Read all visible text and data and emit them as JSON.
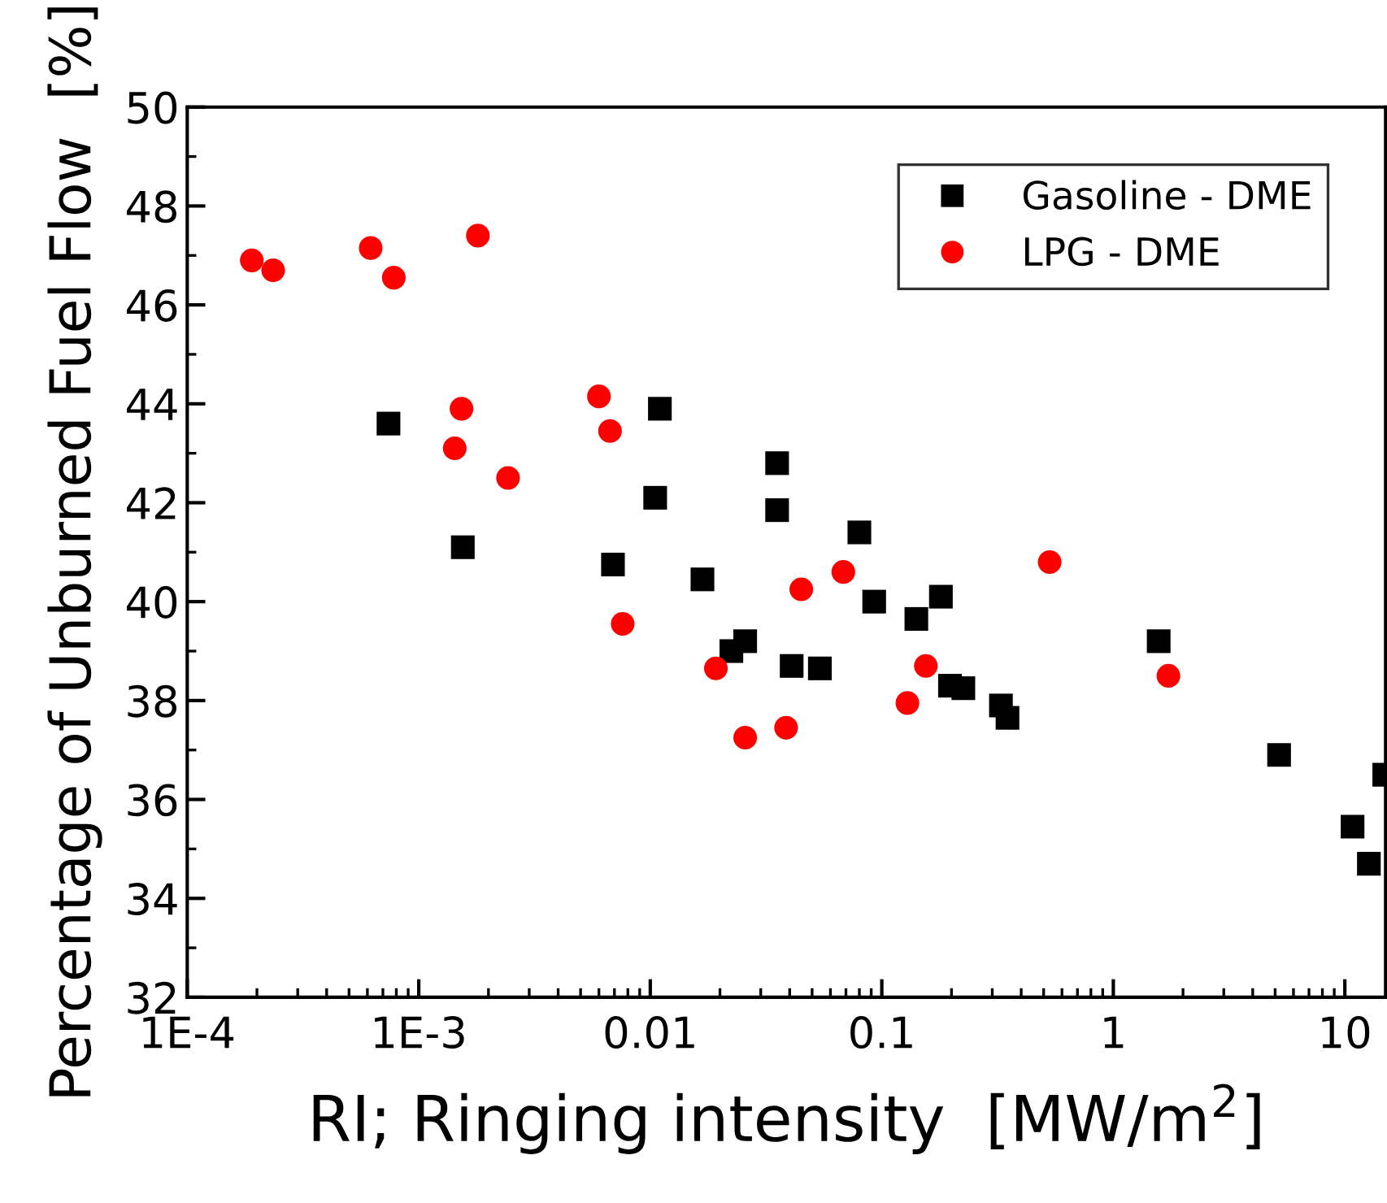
{
  "chart_data": {
    "type": "scatter",
    "xlabel": "RI; Ringing intensity  [MW/m$^{2}$]",
    "ylabel": "Percentage of Unburned Fuel Flow  [%]",
    "log": "x",
    "xlim": [
      0.0001,
      15
    ],
    "xticks": [
      {
        "value": 0.0001,
        "label": "1E-4"
      },
      {
        "value": 0.001,
        "label": "1E-3"
      },
      0.01,
      0.1,
      1,
      10
    ],
    "ylim": [
      32,
      50
    ],
    "yticks": [
      32,
      34,
      36,
      38,
      40,
      42,
      44,
      46,
      48,
      50
    ],
    "grid": false,
    "legend": "top right",
    "series": [
      {
        "name": "Gasoline - DME",
        "color": "#000000",
        "marker": "square",
        "x": [
          0.00074,
          0.00155,
          0.0069,
          0.0105,
          0.011,
          0.0168,
          0.0224,
          0.0257,
          0.0353,
          0.0353,
          0.0408,
          0.054,
          0.08,
          0.0927,
          0.141,
          0.18,
          0.197,
          0.225,
          0.327,
          0.349,
          1.57,
          5.2,
          10.8,
          12.7,
          14.8
        ],
        "values": [
          43.6,
          41.1,
          40.75,
          42.1,
          43.9,
          40.45,
          39.0,
          39.2,
          42.8,
          41.85,
          38.7,
          38.65,
          41.4,
          40.0,
          39.65,
          40.1,
          38.3,
          38.25,
          37.9,
          37.65,
          39.2,
          36.9,
          35.45,
          34.7,
          36.5
        ]
      },
      {
        "name": "LPG - DME",
        "color": "#ff0000",
        "marker": "circle",
        "x": [
          0.00019,
          0.000235,
          0.00062,
          0.00078,
          0.0018,
          0.00153,
          0.00143,
          0.00243,
          0.006,
          0.0067,
          0.0076,
          0.0192,
          0.0257,
          0.0386,
          0.0449,
          0.0682,
          0.129,
          0.155,
          0.531,
          1.73
        ],
        "values": [
          46.9,
          46.7,
          47.15,
          46.55,
          47.4,
          43.9,
          43.1,
          42.5,
          44.15,
          43.45,
          39.55,
          38.65,
          37.25,
          37.45,
          40.25,
          40.6,
          37.95,
          38.7,
          40.8,
          38.5
        ]
      }
    ]
  }
}
